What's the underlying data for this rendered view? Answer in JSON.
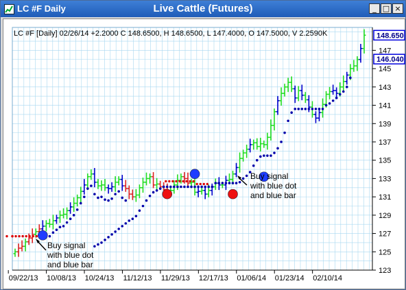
{
  "window": {
    "app_label": "LC #F Daily",
    "title": "Live Cattle (Futures)",
    "buttons": {
      "minimize": "_",
      "maximize": "□",
      "close": "×"
    }
  },
  "info_line": "LC #F [Daily] 02/26/14  +2.2000  C 148.6500, H 148.6500, L 147.4000, O 147.5000, V 2.2590K",
  "annotations": {
    "buy1": [
      "Buy signal",
      "with blue dot",
      "and blue bar"
    ],
    "buy2": [
      "Buy signal",
      "with blue dot",
      "and blue bar"
    ]
  },
  "colors": {
    "bull_bar": "#22dd22",
    "bear_bar": "#dd2222",
    "trend_bar": "#0000cc",
    "dot_blue": "#0000aa",
    "dot_red": "#dd0000",
    "signal_blue": "#1e3cff",
    "signal_red": "#ee1111",
    "grid": "#a8d8f0",
    "price_box": "#0000dd"
  },
  "chart_data": {
    "type": "ohlc",
    "title": "Live Cattle (Futures)",
    "ylim": [
      123,
      149.5
    ],
    "y_ticks": [
      123,
      125,
      127,
      129,
      131,
      133,
      135,
      137,
      139,
      141,
      143,
      145,
      147
    ],
    "x_tick_labels": [
      "09/22/13",
      "10/08/13",
      "10/24/13",
      "11/12/13",
      "11/29/13",
      "12/17/13",
      "01/06/14",
      "01/23/14",
      "02/10/14"
    ],
    "x_tick_index": [
      4,
      15,
      26,
      37,
      48,
      59,
      70,
      81,
      92
    ],
    "price_labels": [
      148.65,
      146.04
    ],
    "closes": [
      125.0,
      125.4,
      125.6,
      126.1,
      126.5,
      126.9,
      127.2,
      127.5,
      127.8,
      128.1,
      128.0,
      128.4,
      128.7,
      129.0,
      129.1,
      129.5,
      129.9,
      130.3,
      130.9,
      131.6,
      132.3,
      133.2,
      133.5,
      132.6,
      132.2,
      132.3,
      132.0,
      131.9,
      132.1,
      132.6,
      132.9,
      132.2,
      131.9,
      131.3,
      131.0,
      131.2,
      132.0,
      132.6,
      133.0,
      133.2,
      132.3,
      132.4,
      132.1,
      131.8,
      131.6,
      131.7,
      132.3,
      132.8,
      133.2,
      133.0,
      132.5,
      132.6,
      131.5,
      131.6,
      131.7,
      131.3,
      131.7,
      132.1,
      132.5,
      132.3,
      132.3,
      132.8,
      132.9,
      133.5,
      134.2,
      135.2,
      135.8,
      136.2,
      136.7,
      136.9,
      136.5,
      136.8,
      136.7,
      137.5,
      138.8,
      140.3,
      141.5,
      142.3,
      143.0,
      143.5,
      142.8,
      141.8,
      142.6,
      142.1,
      141.6,
      140.8,
      140.0,
      139.6,
      140.2,
      141.1,
      142.2,
      142.5,
      142.6,
      142.3,
      143.0,
      143.6,
      144.3,
      145.0,
      145.3,
      146.0,
      147.2,
      148.65
    ],
    "stop_blue": [
      125.6,
      125.8,
      126.0,
      126.3,
      126.6,
      126.9,
      127.2,
      127.5,
      127.8,
      128.1,
      128.4,
      128.6,
      128.9,
      129.5,
      130.0,
      130.6,
      131.1,
      131.5,
      131.7,
      131.9,
      132.1,
      132.1,
      132.1,
      132.1,
      132.1,
      132.1,
      132.1,
      132.1,
      132.1,
      132.1,
      132.1,
      132.1,
      132.1,
      132.1,
      132.1,
      132.5,
      132.5,
      132.5,
      132.5,
      132.5,
      132.5,
      132.5,
      132.6,
      133.0,
      133.3,
      133.7,
      134.4,
      135.0,
      135.4,
      135.5,
      135.5,
      135.5,
      135.8,
      136.3,
      137.0,
      138.0,
      139.3,
      140.2,
      140.6,
      140.6,
      140.6,
      140.6,
      140.6,
      140.6,
      140.6,
      140.6,
      140.6,
      141.0,
      141.2,
      141.5,
      141.8,
      142.2,
      142.5,
      143.0,
      144.0
    ],
    "stop_blue_start": 33,
    "stop_red_first": [
      126.7,
      126.7,
      126.7,
      126.7,
      126.7,
      126.7,
      126.7,
      126.7
    ],
    "stop_red_mid": [
      132.7,
      132.7,
      132.7,
      132.7,
      132.7,
      132.7,
      132.7,
      132.7,
      132.7,
      132.4,
      132.4,
      132.4,
      132.4
    ],
    "stop_red_mid_start": 46,
    "signals": [
      {
        "i": 8,
        "price": 126.8,
        "color": "blue"
      },
      {
        "i": 44,
        "price": 131.3,
        "color": "red"
      },
      {
        "i": 52,
        "price": 133.5,
        "color": "blue"
      },
      {
        "i": 63,
        "price": 131.3,
        "color": "red"
      },
      {
        "i": 72,
        "price": 133.2,
        "color": "blue"
      }
    ]
  }
}
